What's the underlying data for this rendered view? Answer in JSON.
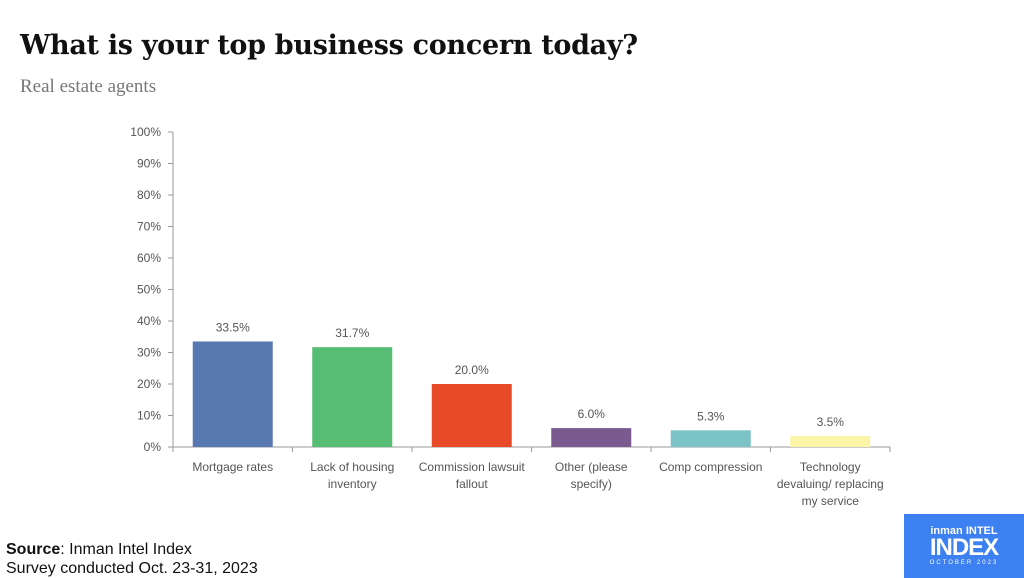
{
  "chart_data": {
    "type": "bar",
    "title": "What is your top business concern today?",
    "subtitle": "Real estate agents",
    "categories": [
      [
        "Mortgage rates"
      ],
      [
        "Lack of housing",
        "inventory"
      ],
      [
        "Commission lawsuit",
        "fallout"
      ],
      [
        "Other (please",
        "specify)"
      ],
      [
        "Comp compression"
      ],
      [
        "Technology",
        "devaluing/ replacing",
        "my service"
      ]
    ],
    "values": [
      33.5,
      31.7,
      20.0,
      6.0,
      5.3,
      3.5
    ],
    "data_labels": [
      "33.5%",
      "31.7%",
      "20.0%",
      "6.0%",
      "5.3%",
      "3.5%"
    ],
    "colors": [
      "#5878b1",
      "#57bc74",
      "#e84a27",
      "#7b5a8f",
      "#7cc3c8",
      "#fbf5a8"
    ],
    "ylim": [
      0,
      100
    ],
    "yticks": [
      "0%",
      "10%",
      "20%",
      "30%",
      "40%",
      "50%",
      "60%",
      "70%",
      "80%",
      "90%",
      "100%"
    ],
    "xlabel": "",
    "ylabel": "",
    "grid": false
  },
  "source": {
    "label": "Source",
    "text": ": Inman Intel Index",
    "survey": "Survey conducted Oct. 23-31, 2023"
  },
  "logo": {
    "line1": "inman INTEL",
    "line2": "INDEX",
    "line3": "OCTOBER 2023"
  }
}
